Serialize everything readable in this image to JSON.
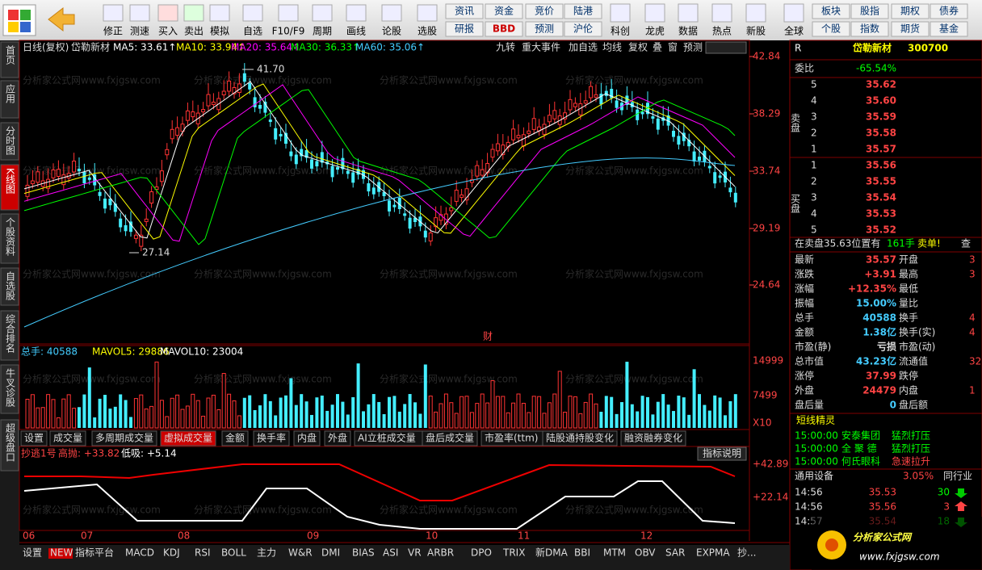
{
  "toolbar": {
    "icons": [
      "修正",
      "测速",
      "买入",
      "卖出",
      "模拟",
      "自选",
      "F10/F9",
      "周期",
      "画线",
      "论股",
      "选股"
    ],
    "grid_left": [
      "资讯",
      "资金",
      "竞价",
      "陆港",
      "研报",
      "BBD",
      "预测",
      "沪伦"
    ],
    "icons2": [
      "科创",
      "龙虎",
      "数据",
      "热点",
      "新股",
      "全球"
    ],
    "grid_right": [
      "板块",
      "股指",
      "期权",
      "债券",
      "个股",
      "指数",
      "期货",
      "基金"
    ]
  },
  "left_tabs": [
    "首页",
    "应用",
    "分时图",
    "K线图",
    "个股资料",
    "自选股",
    "综合排名",
    "牛叉诊股",
    "超级盘口"
  ],
  "chart": {
    "period": "日线(复权)",
    "name": "岱勒新材",
    "ma": [
      "MA5: 33.61↑",
      "MA10: 33.94↑",
      "MA20: 35.64↑",
      "MA30: 36.33↑",
      "MA60: 35.06↑"
    ],
    "buttons": [
      "九转",
      "重大事件",
      "加自选",
      "均线",
      "复权",
      "叠",
      "窗",
      "预测"
    ],
    "high_label": "41.70",
    "low_label": "27.14",
    "event": "财",
    "price_axis": [
      "42.84",
      "38.29",
      "33.74",
      "29.19",
      "24.64"
    ],
    "watermark": "分析家公式网www.fxjgsw.com"
  },
  "volume": {
    "total": "总手: 40588",
    "mavol5": "MAVOL5: 29886",
    "mavol10": "MAVOL10: 23004",
    "axis": [
      "14999",
      "7499",
      "X10"
    ]
  },
  "tabs": [
    "设置",
    "成交量",
    "多周期成交量",
    "虚拟成交量",
    "金额",
    "换手率",
    "内盘",
    "外盘",
    "AI立桩成交量",
    "盘后成交量",
    "市盈率(ttm)",
    "陆股通持股变化",
    "融资融券变化"
  ],
  "indicator_help": "指标说明",
  "indicator": {
    "name": "抄逃1号",
    "high": "高抛: +33.82",
    "low": "低吸: +5.14",
    "axis": [
      "+42.89",
      "+22.14"
    ]
  },
  "months": [
    "06",
    "07",
    "08",
    "09",
    "10",
    "11",
    "12"
  ],
  "bottom_tabs": [
    "设置",
    "NEW",
    "指标平台",
    "MACD",
    "KDJ",
    "RSI",
    "BOLL",
    "主力",
    "W&R",
    "DMI",
    "BIAS",
    "ASI",
    "VR",
    "ARBR",
    "DPO",
    "TRIX",
    "新DMA",
    "BBI",
    "MTM",
    "OBV",
    "SAR",
    "EXPMA",
    "抄..."
  ],
  "quote": {
    "marker": "R",
    "name": "岱勒新材",
    "code": "300700",
    "weibi_label": "委比",
    "weibi": "-65.54%",
    "sell_label": "卖盘",
    "buy_label": "买盘",
    "sell": [
      [
        "5",
        "35.62"
      ],
      [
        "4",
        "35.60"
      ],
      [
        "3",
        "35.59"
      ],
      [
        "2",
        "35.58"
      ],
      [
        "1",
        "35.57"
      ]
    ],
    "buy": [
      [
        "1",
        "35.56"
      ],
      [
        "2",
        "35.55"
      ],
      [
        "3",
        "35.54"
      ],
      [
        "4",
        "35.53"
      ],
      [
        "5",
        "35.52"
      ]
    ],
    "notice": [
      "在卖盘35.63位置有",
      "161手",
      "卖单!",
      "查"
    ],
    "stats": [
      [
        "最新",
        "35.57",
        "开盘",
        "3"
      ],
      [
        "涨跌",
        "+3.91",
        "最高",
        "3"
      ],
      [
        "涨幅",
        "+12.35%",
        "最低"
      ],
      [
        "振幅",
        "15.00%",
        "量比"
      ],
      [
        "总手",
        "40588",
        "换手",
        "4"
      ],
      [
        "金额",
        "1.38亿",
        "换手(实)",
        "4"
      ],
      [
        "市盈(静)",
        "亏损",
        "市盈(动)"
      ],
      [
        "总市值",
        "43.23亿",
        "流通值",
        "32."
      ],
      [
        "涨停",
        "37.99",
        "跌停"
      ],
      [
        "外盘",
        "24479",
        "内盘",
        "1"
      ],
      [
        "盘后量",
        "0",
        "盘后额"
      ]
    ],
    "sprite_title": "短线精灵",
    "sprite": [
      [
        "15:00:00",
        "安泰集团",
        "猛烈打压"
      ],
      [
        "15:00:00",
        "全 聚 德",
        "猛烈打压"
      ],
      [
        "15:00:00",
        "何氏眼科",
        "急速拉升"
      ]
    ],
    "industry": [
      "通用设备",
      "3.05%",
      "同行业"
    ],
    "trades": [
      [
        "14:56",
        "35.53",
        "30"
      ],
      [
        "14:56",
        "35.56",
        "3"
      ],
      [
        "14:57",
        "35.54",
        "18"
      ]
    ]
  },
  "logo": {
    "name": "分析家公式网",
    "url": "www.fxjgsw.com"
  }
}
